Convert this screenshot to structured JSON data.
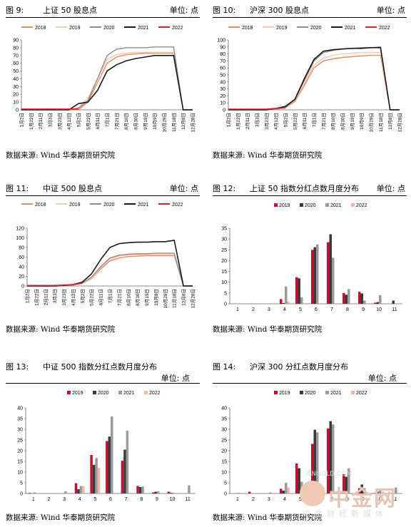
{
  "panels": [
    {
      "fig": "图 9:",
      "title": "上证 50 股息点",
      "unit": "单位: 点",
      "source": "数据来源: Wind 华泰期货研究院",
      "chart_data": {
        "type": "line",
        "legend": [
          "2018",
          "2019",
          "2020",
          "2021",
          "2022"
        ],
        "colors": [
          "#f0875a",
          "#f8c8b0",
          "#8c8c8c",
          "#1a1a1a",
          "#e0202a"
        ],
        "x": [
          "1月2日",
          "1月22日",
          "2月11日",
          "3月3日",
          "3月23日",
          "4月12日",
          "5月2日",
          "5月22日",
          "6月11日",
          "7月1日",
          "7月21日",
          "8月10日",
          "8月30日",
          "9月19日",
          "10月9日",
          "10月29日",
          "11月18日",
          "12月8日",
          "12月28日"
        ],
        "ylim": [
          0,
          90
        ],
        "yticks": [
          0,
          10,
          20,
          30,
          40,
          50,
          60,
          70,
          80,
          90
        ],
        "series": [
          {
            "name": "2018",
            "values": [
              0,
              0,
              0,
              0,
              0,
              0,
              0,
              10,
              35,
              60,
              68,
              71,
              72,
              73,
              73,
              73,
              73,
              0,
              0
            ]
          },
          {
            "name": "2019",
            "values": [
              0,
              0,
              0,
              0,
              0,
              0,
              3,
              15,
              40,
              65,
              71,
              73,
              74,
              74,
              74,
              74,
              74,
              0,
              0
            ]
          },
          {
            "name": "2020",
            "values": [
              0,
              0,
              0,
              0,
              0,
              0,
              2,
              12,
              40,
              70,
              78,
              80,
              80,
              80,
              81,
              81,
              81,
              0,
              0
            ]
          },
          {
            "name": "2021",
            "values": [
              0,
              0,
              0,
              0,
              0,
              0,
              8,
              10,
              25,
              50,
              58,
              63,
              66,
              68,
              70,
              70,
              70,
              0,
              0
            ]
          },
          {
            "name": "2022",
            "values": [
              1,
              1,
              1,
              1,
              1,
              1,
              1,
              null,
              null,
              null,
              null,
              null,
              null,
              null,
              null,
              null,
              null,
              null,
              null
            ]
          }
        ]
      }
    },
    {
      "fig": "图 10:",
      "title": "沪深 300 股息点",
      "unit": "单位: 点",
      "source": "数据来源: Wind 华泰期货研究院",
      "chart_data": {
        "type": "line",
        "legend": [
          "2018",
          "2019",
          "2020",
          "2021",
          "2022"
        ],
        "colors": [
          "#f0875a",
          "#f8c8b0",
          "#8c8c8c",
          "#1a1a1a",
          "#e0202a"
        ],
        "x": [
          "1月2日",
          "1月22日",
          "2月11日",
          "3月3日",
          "3月23日",
          "4月12日",
          "5月2日",
          "5月22日",
          "6月11日",
          "7月1日",
          "7月21日",
          "8月10日",
          "8月30日",
          "9月19日",
          "10月9日",
          "10月29日",
          "11月18日",
          "12月8日",
          "12月28日"
        ],
        "ylim": [
          0,
          100
        ],
        "yticks": [
          0,
          10,
          20,
          30,
          40,
          50,
          60,
          70,
          80,
          90,
          100
        ],
        "series": [
          {
            "name": "2018",
            "values": [
              0,
              0,
              0,
              0,
              0,
              1,
              3,
              12,
              35,
              60,
              70,
              73,
              75,
              76,
              77,
              78,
              78,
              0,
              0
            ]
          },
          {
            "name": "2019",
            "values": [
              0,
              0,
              0,
              0,
              0,
              1,
              3,
              14,
              38,
              64,
              74,
              78,
              80,
              81,
              82,
              82,
              82,
              0,
              0
            ]
          },
          {
            "name": "2020",
            "values": [
              0,
              0,
              0,
              0,
              0,
              1,
              3,
              15,
              42,
              70,
              82,
              85,
              87,
              88,
              89,
              89,
              90,
              0,
              0
            ]
          },
          {
            "name": "2021",
            "values": [
              0,
              0,
              0,
              0,
              0,
              2,
              5,
              15,
              45,
              72,
              84,
              86,
              87,
              88,
              88,
              89,
              89,
              0,
              0
            ]
          },
          {
            "name": "2022",
            "values": [
              1,
              1,
              1,
              1,
              1,
              2,
              3,
              null,
              null,
              null,
              null,
              null,
              null,
              null,
              null,
              null,
              null,
              null,
              null
            ]
          }
        ]
      }
    },
    {
      "fig": "图 11:",
      "title": "中证 500 股息点",
      "unit": "单位: 点",
      "source": "数据来源: Wind 华泰期货研究院",
      "chart_data": {
        "type": "line",
        "legend": [
          "2018",
          "2019",
          "2020",
          "2021",
          "2022"
        ],
        "colors": [
          "#f0875a",
          "#f8c8b0",
          "#8c8c8c",
          "#1a1a1a",
          "#e0202a"
        ],
        "x": [
          "1月2日",
          "1月22日",
          "2月11日",
          "3月3日",
          "3月23日",
          "4月12日",
          "5月2日",
          "5月22日",
          "6月11日",
          "7月1日",
          "7月21日",
          "8月10日",
          "8月30日",
          "9月19日",
          "10月9日",
          "10月29日",
          "11月18日",
          "12月8日",
          "12月28日"
        ],
        "ylim": [
          0,
          120
        ],
        "yticks": [
          0,
          20,
          40,
          60,
          80,
          100,
          120
        ],
        "series": [
          {
            "name": "2018",
            "values": [
              0,
              0,
              0,
              0,
              1,
              2,
              5,
              15,
              35,
              52,
              58,
              61,
              62,
              63,
              63,
              63,
              63,
              0,
              0
            ]
          },
          {
            "name": "2019",
            "values": [
              0,
              0,
              0,
              0,
              1,
              2,
              5,
              16,
              37,
              55,
              62,
              64,
              65,
              65,
              65,
              65,
              65,
              0,
              0
            ]
          },
          {
            "name": "2020",
            "values": [
              0,
              0,
              0,
              0,
              1,
              2,
              6,
              18,
              40,
              58,
              64,
              66,
              67,
              67,
              68,
              68,
              68,
              0,
              0
            ]
          },
          {
            "name": "2021",
            "values": [
              0,
              0,
              0,
              0,
              1,
              3,
              8,
              25,
              55,
              80,
              88,
              90,
              91,
              91,
              92,
              92,
              95,
              0,
              0
            ]
          },
          {
            "name": "2022",
            "values": [
              1,
              1,
              1,
              1,
              2,
              3,
              6,
              null,
              null,
              null,
              null,
              null,
              null,
              null,
              null,
              null,
              null,
              null,
              null
            ]
          }
        ]
      }
    },
    {
      "fig": "图 12:",
      "title": "上证 50 指数分红点数月度分布",
      "unit": "单位: 点",
      "source": "数据来源: Wind 华泰期货研究院",
      "chart_data": {
        "type": "bar",
        "legend": [
          "2019",
          "2020",
          "2021",
          "2022"
        ],
        "colors": [
          "#c8102e",
          "#3a3a3a",
          "#9a9a9a",
          "#f4b8a8"
        ],
        "categories": [
          "1",
          "2",
          "3",
          "4",
          "5",
          "6",
          "7",
          "8",
          "9",
          "10",
          "11"
        ],
        "ylim": [
          0,
          35
        ],
        "yticks": [
          0,
          5,
          10,
          15,
          20,
          25,
          30,
          35
        ],
        "series": [
          {
            "name": "2019",
            "values": [
              0,
              0,
              0,
              2.2,
              12.3,
              25,
              28.5,
              5,
              5.5,
              0.5,
              0
            ]
          },
          {
            "name": "2020",
            "values": [
              0,
              0,
              0,
              0.3,
              11.8,
              26.2,
              32.2,
              4.2,
              4.8,
              0.8,
              1.5
            ]
          },
          {
            "name": "2021",
            "values": [
              0,
              0,
              0.2,
              8,
              3,
              27.5,
              21.3,
              6.8,
              1.5,
              4,
              0
            ]
          },
          {
            "name": "2022",
            "values": [
              0,
              0,
              0,
              1,
              0,
              0,
              0,
              0,
              0,
              0,
              0
            ]
          }
        ]
      }
    },
    {
      "fig": "图 13:",
      "title": "中证 500 指数分红点数月度分布",
      "unit": "单位: 点",
      "source": "数据来源: Wind 华泰期货研究院",
      "chart_data": {
        "type": "bar",
        "legend": [
          "2019",
          "2020",
          "2021",
          "2022"
        ],
        "colors": [
          "#c8102e",
          "#3a3a3a",
          "#9a9a9a",
          "#f4b8a8"
        ],
        "categories": [
          "1",
          "2",
          "3",
          "4",
          "5",
          "6",
          "7",
          "8",
          "9",
          "10",
          "11"
        ],
        "ylim": [
          0,
          40
        ],
        "yticks": [
          0,
          5,
          10,
          15,
          20,
          25,
          30,
          35,
          40
        ],
        "series": [
          {
            "name": "2019",
            "values": [
              0.3,
              0,
              0,
              4.8,
              18,
              24.5,
              15.3,
              3.5,
              0.5,
              0.8,
              0
            ]
          },
          {
            "name": "2020",
            "values": [
              0,
              0,
              0,
              2,
              13.4,
              26.6,
              20.5,
              3,
              0.8,
              0.3,
              0
            ]
          },
          {
            "name": "2021",
            "values": [
              0.5,
              0,
              1,
              3.5,
              16.6,
              36,
              29.3,
              3.2,
              1,
              0.3,
              3.8
            ]
          },
          {
            "name": "2022",
            "values": [
              0,
              0,
              0,
              3.5,
              12,
              0,
              0,
              0,
              0,
              0,
              0
            ]
          }
        ]
      }
    },
    {
      "fig": "图 14:",
      "title": "沪深 300 分红点数月度分布",
      "unit": "单位: 点",
      "source": "数据来源: Wind 华泰期货研究院",
      "chart_data": {
        "type": "bar",
        "legend": [
          "2019",
          "2020",
          "2021",
          "2022"
        ],
        "colors": [
          "#c8102e",
          "#3a3a3a",
          "#9a9a9a",
          "#f4b8a8"
        ],
        "categories": [
          "1",
          "2",
          "3",
          "4",
          "5",
          "6",
          "7",
          "8",
          "9",
          "10",
          "11"
        ],
        "ylim": [
          0,
          40
        ],
        "yticks": [
          0,
          5,
          10,
          15,
          20,
          25,
          30,
          35,
          40
        ],
        "series": [
          {
            "name": "2019",
            "values": [
              0,
              0.8,
              0,
              2.2,
              14,
              23.2,
              30.4,
              9,
              2.5,
              0.2,
              0
            ]
          },
          {
            "name": "2020",
            "values": [
              0,
              0,
              0,
              1.3,
              11.8,
              29.8,
              33.8,
              7.8,
              4.2,
              0.8,
              0
            ]
          },
          {
            "name": "2021",
            "values": [
              0.3,
              0,
              0.5,
              5,
              5.5,
              28.6,
              32.3,
              11.8,
              2.5,
              1.5,
              2.8
            ]
          },
          {
            "name": "2022",
            "values": [
              0,
              0,
              0,
              2.8,
              2.5,
              0,
              0,
              0,
              0,
              0,
              0
            ]
          }
        ]
      }
    }
  ],
  "watermark": {
    "site": "CNGOLD.COM",
    "logo": "中金网",
    "tag": "中金财经新媒体"
  }
}
